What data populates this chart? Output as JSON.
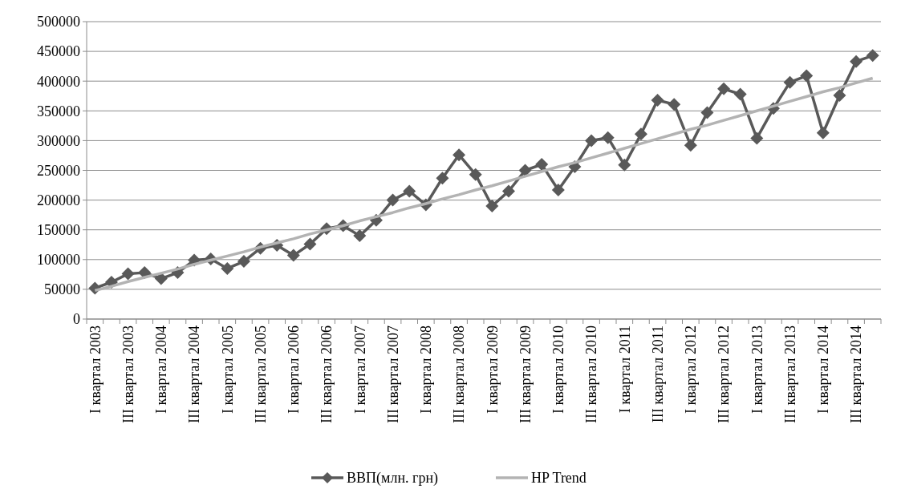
{
  "chart_data": {
    "type": "line",
    "categories": [
      "I квартал 2003",
      null,
      "III квартал 2003",
      null,
      "I квартал 2004",
      null,
      "III квартал 2004",
      null,
      "I квартал 2005",
      null,
      "III квартал 2005",
      null,
      "I квартал 2006",
      null,
      "III квартал 2006",
      null,
      "I квартал 2007",
      null,
      "III квартал 2007",
      null,
      "I квартал 2008",
      null,
      "III квартал 2008",
      null,
      "I квартал 2009",
      null,
      "III квартал 2009",
      null,
      "I квартал 2010",
      null,
      "III квартал 2010",
      null,
      "I квартал 2011",
      null,
      "III квартал 2011",
      null,
      "I квартал 2012",
      null,
      "III квартал 2012",
      null,
      "I квартал 2013",
      null,
      "III квартал 2013",
      null,
      "I квартал 2014",
      null,
      "III квартал 2014",
      null
    ],
    "series": [
      {
        "name": "ВВП(млн. грн)",
        "color": "#595959",
        "marker": "diamond",
        "values": [
          52000,
          62000,
          76000,
          78000,
          68000,
          78000,
          99000,
          101000,
          85000,
          97000,
          119000,
          124000,
          107000,
          126000,
          152000,
          157000,
          140000,
          166000,
          200000,
          215000,
          192000,
          237000,
          276000,
          243000,
          190000,
          215000,
          250000,
          260000,
          217000,
          256000,
          300000,
          305000,
          259000,
          311000,
          368000,
          361000,
          292000,
          347000,
          387000,
          378000,
          304000,
          354000,
          398000,
          409000,
          313000,
          376000,
          433000,
          443000
        ]
      },
      {
        "name": "HP Trend",
        "color": "#b3b3b3",
        "marker": "none",
        "values": [
          48000,
          55000,
          63000,
          70000,
          77000,
          84000,
          92000,
          99000,
          106000,
          113000,
          121000,
          128000,
          135000,
          143000,
          150000,
          157000,
          165000,
          172000,
          179000,
          187000,
          194000,
          202000,
          209000,
          217000,
          224000,
          232000,
          240000,
          248000,
          256000,
          263000,
          271000,
          279000,
          287000,
          295000,
          303000,
          311000,
          319000,
          326000,
          334000,
          342000,
          350000,
          358000,
          366000,
          374000,
          382000,
          389000,
          397000,
          405000
        ]
      }
    ],
    "ylim": [
      0,
      500000
    ],
    "yticks": [
      0,
      50000,
      100000,
      150000,
      200000,
      250000,
      300000,
      350000,
      400000,
      450000,
      500000
    ],
    "grid": "y",
    "legend": "bottom"
  }
}
